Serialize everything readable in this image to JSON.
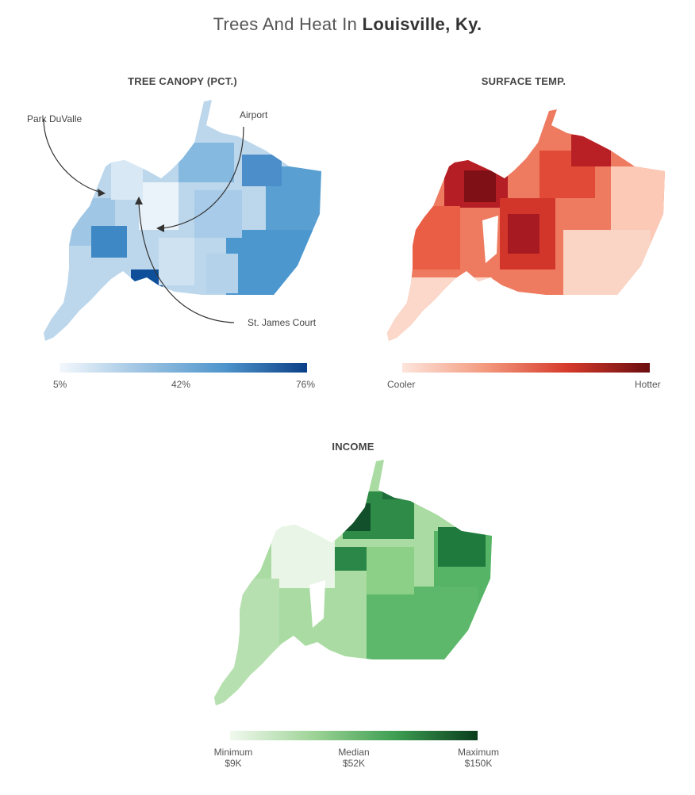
{
  "title": {
    "prefix": "Trees And Heat In ",
    "city": "Louisville, Ky."
  },
  "panels": {
    "canopy": {
      "title": "TREE CANOPY (PCT.)",
      "legend": {
        "min": "5%",
        "mid": "42%",
        "max": "76%",
        "colors": [
          "#f4f8fc",
          "#9cc3e2",
          "#4e95cc",
          "#0b3f87"
        ]
      },
      "annotations": [
        "Park DuValle",
        "Airport",
        "St. James Court"
      ]
    },
    "temp": {
      "title": "SURFACE TEMP.",
      "legend": {
        "min": "Cooler",
        "max": "Hotter",
        "colors": [
          "#fde5dc",
          "#f39a7f",
          "#d63a2a",
          "#6a0d10"
        ]
      }
    },
    "income": {
      "title": "INCOME",
      "legend": {
        "min_label": "Minimum",
        "min_value": "$9K",
        "mid_label": "Median",
        "mid_value": "$52K",
        "max_label": "Maximum",
        "max_value": "$150K",
        "colors": [
          "#f1f9ef",
          "#9ed497",
          "#3e9e52",
          "#0a3d1d"
        ]
      }
    }
  }
}
